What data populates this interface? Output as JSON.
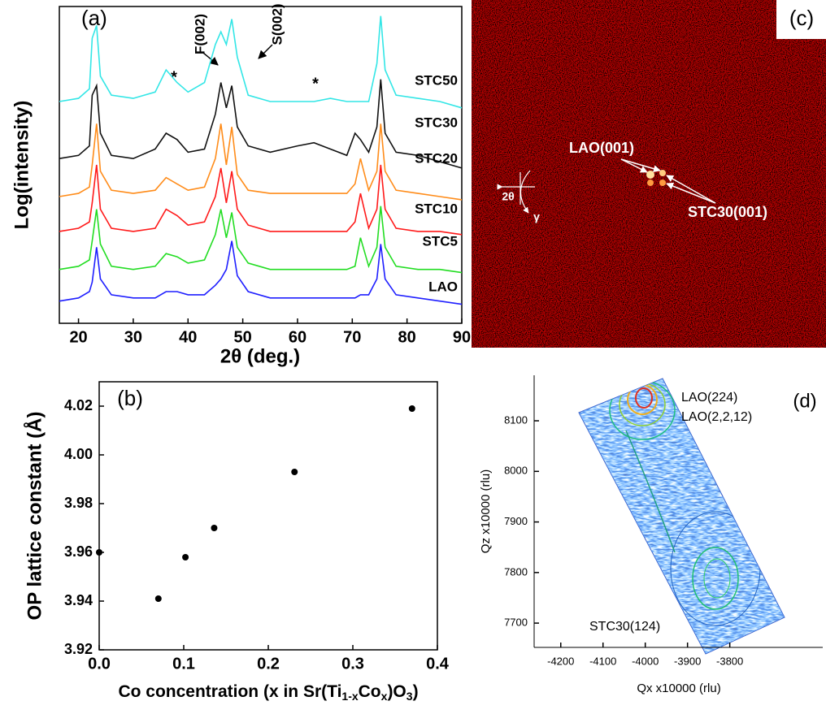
{
  "chart_data": [
    {
      "type": "line",
      "ylabel": "Log(intensity)",
      "xlabel": "2θ (deg.)",
      "annotations": [
        "(a)",
        "F(002)",
        "S(002)",
        "*",
        "*"
      ],
      "xlim": [
        16.5,
        90
      ],
      "xticks": [
        20,
        30,
        40,
        50,
        60,
        70,
        80,
        90
      ],
      "ylim": [
        0,
        100
      ],
      "x": [
        15,
        20,
        22,
        22.5,
        23.3,
        24,
        26,
        30,
        34,
        36,
        38,
        40,
        43,
        45,
        46,
        47,
        48,
        49,
        51,
        55,
        60,
        63,
        66,
        69,
        70.5,
        71.5,
        73,
        74.5,
        75.2,
        76,
        78,
        82,
        86,
        90
      ],
      "series": [
        {
          "name": "STC50",
          "color": "#33e6e6",
          "values": [
            70,
            71,
            74,
            90,
            94,
            78,
            72,
            71,
            73,
            80,
            76,
            73,
            76,
            88,
            92,
            88,
            96,
            84,
            72,
            70,
            70,
            70,
            71,
            70,
            70,
            70,
            70,
            82,
            97,
            80,
            72,
            71,
            70,
            68
          ]
        },
        {
          "name": "STC30",
          "color": "#111111",
          "values": [
            52,
            53,
            56,
            72,
            75,
            60,
            53,
            52,
            55,
            60,
            58,
            54,
            55,
            66,
            76,
            68,
            75,
            62,
            56,
            54,
            56,
            57,
            55,
            53,
            60,
            58,
            54,
            62,
            77,
            60,
            54,
            53,
            51,
            49
          ]
        },
        {
          "name": "STC20",
          "color": "#ff8c1a",
          "values": [
            40,
            41,
            43,
            50,
            63,
            48,
            42,
            41,
            42,
            46,
            44,
            42,
            43,
            52,
            63,
            50,
            62,
            47,
            42,
            41,
            41,
            41,
            41,
            41,
            44,
            52,
            42,
            48,
            63,
            48,
            42,
            41,
            40,
            39
          ]
        },
        {
          "name": "STC10",
          "color": "#ff1a1a",
          "values": [
            29,
            30,
            32,
            38,
            50,
            36,
            30,
            29,
            30,
            36,
            34,
            31,
            32,
            40,
            49,
            38,
            48,
            36,
            31,
            29,
            29,
            29,
            29,
            29,
            32,
            41,
            30,
            36,
            50,
            36,
            30,
            29,
            29,
            28
          ]
        },
        {
          "name": "STC5",
          "color": "#22dd22",
          "values": [
            17,
            18,
            20,
            26,
            36,
            25,
            18,
            17,
            18,
            22,
            21,
            19,
            20,
            28,
            36,
            27,
            35,
            24,
            19,
            17,
            17,
            17,
            17,
            17,
            18,
            27,
            18,
            24,
            37,
            24,
            18,
            17,
            17,
            16
          ]
        },
        {
          "name": "LAO",
          "color": "#1f1fff",
          "values": [
            7,
            8,
            10,
            13,
            24,
            14,
            9,
            8,
            8,
            10,
            10,
            9,
            9,
            12,
            14,
            17,
            26,
            15,
            10,
            8,
            8,
            8,
            8,
            8,
            8,
            9,
            9,
            14,
            25,
            14,
            9,
            8,
            7,
            6
          ]
        }
      ]
    },
    {
      "type": "scatter",
      "ylabel": "OP lattice constant (Å)",
      "xlabel": [
        "Co concentration (x in Sr(Ti",
        "1-x",
        "Co",
        "x",
        ")O",
        "3",
        ")"
      ],
      "annotations": [
        "(b)"
      ],
      "x": [
        0,
        0.07,
        0.102,
        0.136,
        0.231,
        0.37
      ],
      "values": [
        3.96,
        3.941,
        3.958,
        3.97,
        3.993,
        4.019
      ],
      "color": "#000000",
      "xlim": [
        0,
        0.4
      ],
      "xticks": [
        {
          "value": 0,
          "label": "0.0"
        },
        0.1,
        0.2,
        0.3,
        0.4
      ],
      "ylim": [
        3.92,
        4.03
      ],
      "yticks": [
        3.92,
        3.94,
        3.96,
        3.98,
        {
          "value": 4.0,
          "label": "4.00"
        },
        4.02
      ]
    },
    {
      "type": "image",
      "annotations": [
        "(c)",
        "LAO(001)",
        "STC30(001)",
        "2θ",
        "γ"
      ]
    },
    {
      "type": "contour",
      "xlabel": "Qx x10000 (rlu)",
      "ylabel": "Qz  x10000 (rlu)",
      "annotations": [
        "(d)",
        "LAO(224)",
        "LAO(2,2,12)",
        "STC30(124)"
      ],
      "xlim": [
        -4263,
        -3580
      ],
      "xticks": [
        -4200,
        -4100,
        -4000,
        -3900,
        -3800
      ],
      "ylim": [
        7652,
        8190
      ],
      "yticks": [
        7700,
        7800,
        7900,
        8000,
        8100
      ]
    }
  ]
}
